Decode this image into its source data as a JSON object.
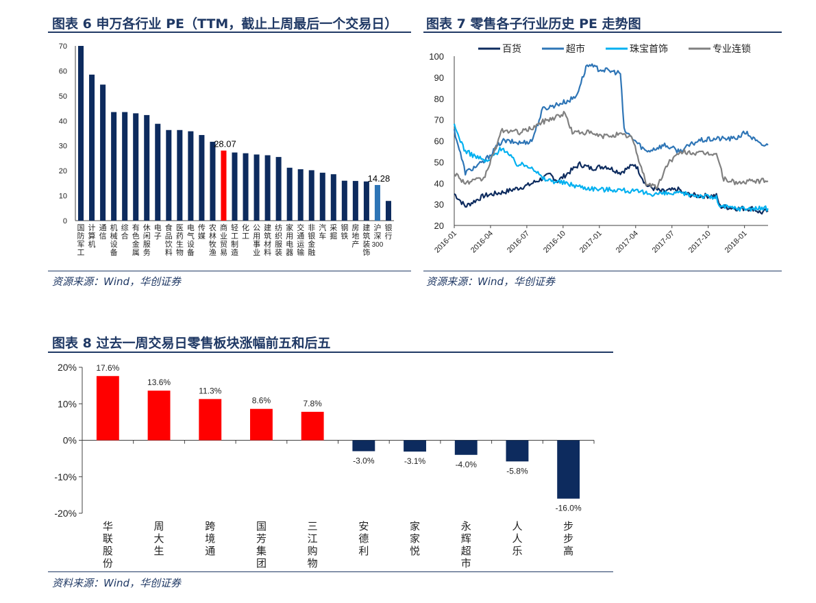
{
  "chart1": {
    "title": "图表 6 申万各行业 PE（TTM，截止上周最后一个交易日）",
    "source": "资源来源：Wind，华创证券",
    "chart_data": {
      "type": "bar",
      "categories": [
        "国防军工",
        "计算机",
        "通信",
        "机械设备",
        "综合",
        "有色金属",
        "休闲服务",
        "电子",
        "食品饮料",
        "医药生物",
        "电气设备",
        "传媒",
        "农林牧渔",
        "商业贸易",
        "轻工制造",
        "化工",
        "公用事业",
        "建筑材料",
        "纺织服装",
        "家用电器",
        "交通运输",
        "非银金融",
        "汽车",
        "采掘",
        "钢铁",
        "房地产",
        "建筑装饰",
        "沪深300",
        "银行"
      ],
      "values": [
        70.0,
        58.5,
        54.5,
        43.5,
        43.5,
        43.0,
        42.3,
        38.8,
        36.3,
        36.3,
        35.8,
        34.3,
        31.6,
        28.07,
        27.3,
        27.0,
        26.5,
        26.2,
        25.5,
        21.2,
        20.6,
        20.2,
        19.2,
        18.6,
        16.0,
        15.9,
        15.7,
        14.28,
        7.9
      ],
      "highlight": {
        "商业贸易": "#ff0000",
        "沪深300": "#2e75b6"
      },
      "data_labels": {
        "13": "28.07",
        "27": "14.28"
      },
      "yticks": [
        "0",
        "10",
        "20",
        "30",
        "40",
        "50",
        "60",
        "70"
      ],
      "ylim": [
        0,
        70
      ],
      "bar_color": "#0d2b5e"
    }
  },
  "chart2": {
    "title": "图表 7 零售各子行业历史 PE 走势图",
    "source": "资源来源：Wind，华创证券",
    "chart_data": {
      "type": "line",
      "ylim": [
        20,
        100
      ],
      "yticks": [
        "20",
        "30",
        "40",
        "50",
        "60",
        "70",
        "80",
        "90",
        "100"
      ],
      "xticks": [
        "2016-01",
        "2016-04",
        "2016-07",
        "2016-10",
        "2017-01",
        "2017-04",
        "2017-07",
        "2017-10",
        "2018-01"
      ],
      "series": [
        {
          "name": "百货",
          "color": "#0d2b5e",
          "values": [
            [
              0,
              35
            ],
            [
              3,
              29
            ],
            [
              8,
              34
            ],
            [
              14,
              36
            ],
            [
              20,
              39
            ],
            [
              26,
              44
            ],
            [
              28,
              41
            ],
            [
              34,
              49
            ],
            [
              37,
              47
            ],
            [
              41,
              48
            ],
            [
              45,
              45
            ],
            [
              49,
              49
            ],
            [
              52,
              39
            ],
            [
              56,
              36
            ],
            [
              61,
              37
            ],
            [
              62,
              35
            ],
            [
              66,
              34
            ],
            [
              71,
              34
            ],
            [
              72,
              29
            ],
            [
              77,
              28
            ],
            [
              81,
              28
            ],
            [
              83,
              26
            ],
            [
              85,
              27
            ]
          ]
        },
        {
          "name": "超市",
          "color": "#2e75b6",
          "values": [
            [
              0,
              65
            ],
            [
              3,
              45
            ],
            [
              8,
              50
            ],
            [
              13,
              60
            ],
            [
              18,
              59
            ],
            [
              21,
              60
            ],
            [
              24,
              75
            ],
            [
              31,
              79
            ],
            [
              33,
              81
            ],
            [
              36,
              96
            ],
            [
              39,
              94
            ],
            [
              45,
              92
            ],
            [
              46,
              65
            ],
            [
              52,
              55
            ],
            [
              57,
              58
            ],
            [
              61,
              55
            ],
            [
              66,
              60
            ],
            [
              71,
              61
            ],
            [
              76,
              61
            ],
            [
              79,
              64
            ],
            [
              83,
              58
            ],
            [
              85,
              58
            ]
          ]
        },
        {
          "name": "珠宝首饰",
          "color": "#00b0f0",
          "values": [
            [
              0,
              67
            ],
            [
              3,
              55
            ],
            [
              9,
              50
            ],
            [
              13,
              57
            ],
            [
              17,
              49
            ],
            [
              21,
              48
            ],
            [
              24,
              42
            ],
            [
              30,
              40
            ],
            [
              35,
              38
            ],
            [
              40,
              37
            ],
            [
              44,
              37
            ],
            [
              49,
              36
            ],
            [
              53,
              35
            ],
            [
              58,
              35
            ],
            [
              62,
              35
            ],
            [
              67,
              34
            ],
            [
              71,
              33
            ],
            [
              72,
              29
            ],
            [
              77,
              28
            ],
            [
              83,
              28
            ],
            [
              85,
              28
            ]
          ]
        },
        {
          "name": "专业连锁",
          "color": "#808080",
          "values": [
            [
              0,
              45
            ],
            [
              3,
              40
            ],
            [
              8,
              42
            ],
            [
              13,
              65
            ],
            [
              18,
              64
            ],
            [
              21,
              66
            ],
            [
              24,
              69
            ],
            [
              27,
              71
            ],
            [
              30,
              73
            ],
            [
              32,
              64
            ],
            [
              36,
              64
            ],
            [
              40,
              62
            ],
            [
              44,
              63
            ],
            [
              48,
              62
            ],
            [
              52,
              40
            ],
            [
              55,
              38
            ],
            [
              58,
              50
            ],
            [
              62,
              55
            ],
            [
              66,
              54
            ],
            [
              71,
              54
            ],
            [
              73,
              42
            ],
            [
              77,
              40
            ],
            [
              81,
              41
            ],
            [
              85,
              41
            ]
          ]
        }
      ]
    }
  },
  "chart3": {
    "title": "图表 8 过去一周交易日零售板块涨幅前五和后五",
    "source": "资料来源：Wind，华创证券",
    "chart_data": {
      "type": "bar",
      "categories": [
        "华联股份",
        "周大生",
        "跨境通",
        "国芳集团",
        "三江购物",
        "安德利",
        "家家悦",
        "永辉超市",
        "人人乐",
        "步步高"
      ],
      "values": [
        17.6,
        13.6,
        11.3,
        8.6,
        7.8,
        -3.0,
        -3.1,
        -4.0,
        -5.8,
        -16.0
      ],
      "data_labels": [
        "17.6%",
        "13.6%",
        "11.3%",
        "8.6%",
        "7.8%",
        "-3.0%",
        "-3.1%",
        "-4.0%",
        "-5.8%",
        "-16.0%"
      ],
      "yticks": [
        "20%",
        "10%",
        "0%",
        "-10%",
        "-20%"
      ],
      "ylim": [
        -20,
        20
      ],
      "positive_color": "#ff0000",
      "negative_color": "#0d2b5e"
    }
  }
}
